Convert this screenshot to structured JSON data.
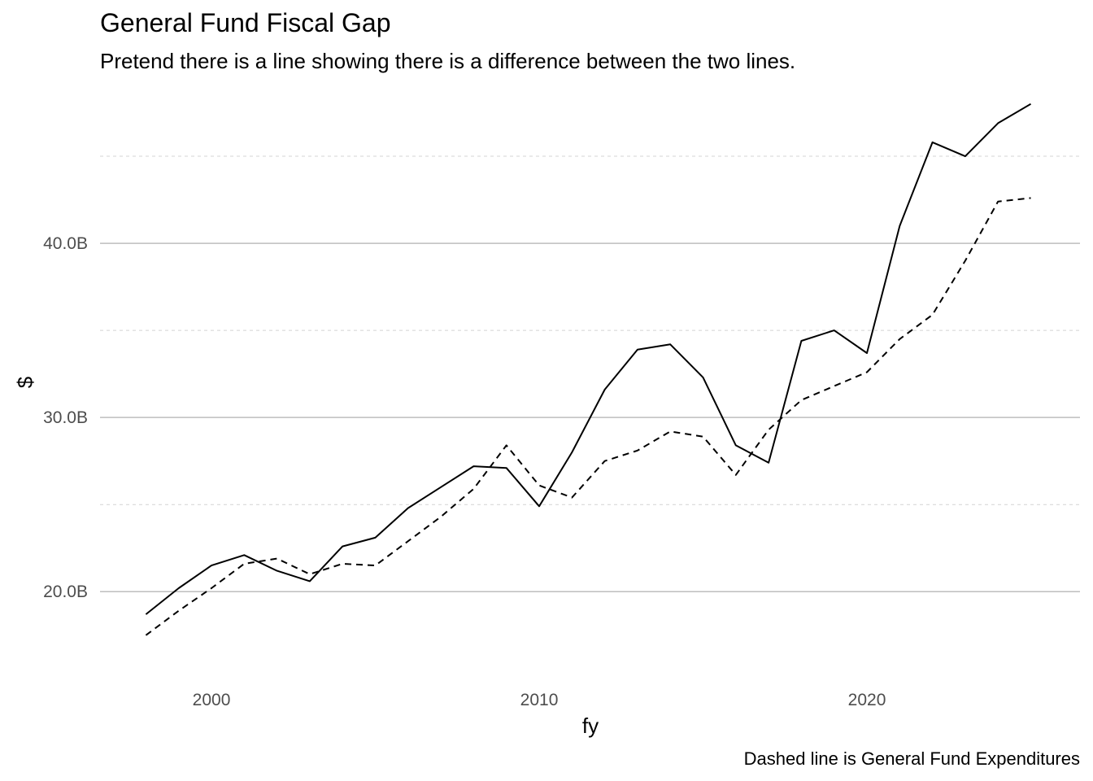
{
  "chart_data": {
    "type": "line",
    "title": "General Fund Fiscal Gap",
    "subtitle": "Pretend there is a line showing there is a difference between the two lines.",
    "caption": "Dashed line is General Fund Expenditures",
    "xlabel": "fy",
    "ylabel": "$",
    "xlim": [
      1996.6,
      2026.5
    ],
    "ylim": [
      15.2,
      49.3
    ],
    "x_ticks": [
      2000,
      2010,
      2020
    ],
    "x_tick_labels": [
      "2000",
      "2010",
      "2020"
    ],
    "y_ticks": [
      20,
      30,
      40
    ],
    "y_tick_labels": [
      "20.0B",
      "30.0B",
      "40.0B"
    ],
    "y_minor_ticks": [
      25,
      35,
      45
    ],
    "grid": true,
    "legend": "none",
    "colors": {
      "line": "#000000",
      "major_grid": "#bebebe",
      "minor_grid": "#d4d4d4",
      "tick_text": "#4d4d4d"
    },
    "x": [
      1998,
      1999,
      2000,
      2001,
      2002,
      2003,
      2004,
      2005,
      2006,
      2007,
      2008,
      2009,
      2010,
      2011,
      2012,
      2013,
      2014,
      2015,
      2016,
      2017,
      2018,
      2019,
      2020,
      2021,
      2022,
      2023,
      2024,
      2025
    ],
    "series": [
      {
        "style": "solid",
        "values": [
          18.7,
          20.2,
          21.5,
          22.1,
          21.2,
          20.6,
          22.6,
          23.1,
          24.8,
          26.0,
          27.2,
          27.1,
          24.9,
          28.0,
          31.6,
          33.9,
          34.2,
          32.3,
          28.4,
          27.4,
          34.4,
          35.0,
          33.7,
          41.0,
          45.8,
          45.0,
          46.9,
          48.0
        ]
      },
      {
        "style": "dashed",
        "values": [
          17.5,
          18.9,
          20.2,
          21.6,
          21.9,
          21.0,
          21.6,
          21.5,
          22.9,
          24.3,
          25.9,
          28.4,
          26.1,
          25.4,
          27.5,
          28.1,
          29.2,
          28.9,
          26.7,
          29.3,
          31.0,
          31.8,
          32.6,
          34.5,
          35.9,
          39.0,
          42.4,
          42.6
        ]
      }
    ]
  }
}
